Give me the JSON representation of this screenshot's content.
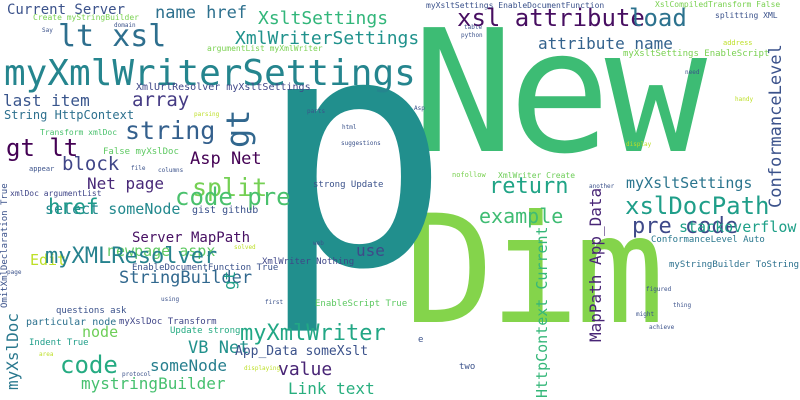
{
  "wordcloud": {
    "words": [
      {
        "text": "New",
        "color": "#3dbc74"
      },
      {
        "text": "Dim",
        "color": "#84d44b"
      },
      {
        "text": "p",
        "color": "#218f8d"
      },
      {
        "text": "myXmlWriterSettings",
        "color": "#25858e"
      },
      {
        "text": "xsl attribute",
        "color": "#470e61"
      },
      {
        "text": "lt xsl",
        "color": "#2e6f8e"
      },
      {
        "text": "XmlWriterSettings",
        "color": "#20928c"
      },
      {
        "text": "XsltSettings",
        "color": "#32b67a"
      },
      {
        "text": "Current Server",
        "color": "#3b528b"
      },
      {
        "text": "name href",
        "color": "#2d708e"
      },
      {
        "text": "load",
        "color": "#2c728e"
      },
      {
        "text": "attribute name",
        "color": "#33628d"
      },
      {
        "text": "gt",
        "color": "#31678e"
      },
      {
        "text": "string",
        "color": "#34608d"
      },
      {
        "text": "gt lt",
        "color": "#440154"
      },
      {
        "text": "block",
        "color": "#404688"
      },
      {
        "text": "array",
        "color": "#443a83"
      },
      {
        "text": "last item",
        "color": "#39558c"
      },
      {
        "text": "String HttpContext",
        "color": "#2d708e"
      },
      {
        "text": "split",
        "color": "#75d054"
      },
      {
        "text": "code pre",
        "color": "#4ac16d"
      },
      {
        "text": "return",
        "color": "#20a486"
      },
      {
        "text": "myXsltSettings",
        "color": "#2b758e"
      },
      {
        "text": "xslDocPath",
        "color": "#1f9e89"
      },
      {
        "text": "example",
        "color": "#3fbc73"
      },
      {
        "text": "pre code",
        "color": "#3e4989"
      },
      {
        "text": "stackoverflow",
        "color": "#1fa088"
      },
      {
        "text": "ConformanceLevel",
        "color": "#3b528b"
      },
      {
        "text": "MapPath App_Data",
        "color": "#482576"
      },
      {
        "text": "HttpContext Current",
        "color": "#35b779"
      },
      {
        "text": "Asp Net",
        "color": "#440154"
      },
      {
        "text": "Net page",
        "color": "#482878"
      },
      {
        "text": "select someNode",
        "color": "#23898e"
      },
      {
        "text": "href",
        "color": "#1f9a8a"
      },
      {
        "text": "Server MapPath",
        "color": "#471063"
      },
      {
        "text": "newpage aspx",
        "color": "#5ec962"
      },
      {
        "text": "Edit",
        "color": "#bddf26"
      },
      {
        "text": "myXMLResolver",
        "color": "#26828e"
      },
      {
        "text": "StringBuilder",
        "color": "#31688e"
      },
      {
        "text": "myXmlWriter",
        "color": "#22a785"
      },
      {
        "text": "code",
        "color": "#25ab82"
      },
      {
        "text": "node",
        "color": "#6ece58"
      },
      {
        "text": "VB Net",
        "color": "#21918c"
      },
      {
        "text": "someNode",
        "color": "#277f8e"
      },
      {
        "text": "mystringBuilder",
        "color": "#46c06f"
      },
      {
        "text": "myXslDoc",
        "color": "#2a788e"
      },
      {
        "text": "value",
        "color": "#482475"
      },
      {
        "text": "App_Data someXslt",
        "color": "#3b528b"
      },
      {
        "text": "Link text",
        "color": "#29af7f"
      },
      {
        "text": "use",
        "color": "#3e4a89"
      },
      {
        "text": "XmlUrlResolver myXsltSettings",
        "color": "#3f4788"
      },
      {
        "text": "EnableScript True",
        "color": "#5ec962"
      },
      {
        "text": "XmlWriter Nothing",
        "color": "#3f4788"
      },
      {
        "text": "gist github",
        "color": "#3b528b"
      },
      {
        "text": "EnableDocumentFunction True",
        "color": "#3b528b"
      },
      {
        "text": "ConformanceLevel Auto",
        "color": "#2a788e"
      },
      {
        "text": "myStringBuilder ToString",
        "color": "#2c718e"
      },
      {
        "text": "myXslDoc Transform",
        "color": "#404688"
      },
      {
        "text": "particular node",
        "color": "#2c718e"
      },
      {
        "text": "Indent True",
        "color": "#1f9e89"
      },
      {
        "text": "questions ask",
        "color": "#3b528b"
      },
      {
        "text": "Update strong",
        "color": "#25ab82"
      },
      {
        "text": "strong Update",
        "color": "#3b528b"
      },
      {
        "text": "XmlWriter Create",
        "color": "#6ece58"
      },
      {
        "text": "xmlDoc argumentList",
        "color": "#404688"
      },
      {
        "text": "False myXslDoc",
        "color": "#5ec962"
      },
      {
        "text": "Transform xmlDoc",
        "color": "#4ac16d"
      },
      {
        "text": "OmitXmlDeclaration True",
        "color": "#3b528b"
      },
      {
        "text": "myXsltSettings EnableDocumentFunction",
        "color": "#3b528b"
      },
      {
        "text": "XslCompiledTransform False",
        "color": "#7ad151"
      },
      {
        "text": "argumentList myXmlWriter",
        "color": "#7ad151"
      },
      {
        "text": "Create myStringBuilder",
        "color": "#7ad151"
      },
      {
        "text": "myXsltSettings EnableScript",
        "color": "#7ad151"
      },
      {
        "text": "splitting XML",
        "color": "#3b528b"
      },
      {
        "text": "gt",
        "color": "#1f9e89"
      },
      {
        "text": "address",
        "color": "#bddf26"
      },
      {
        "text": "nofollow",
        "color": "#7ad151"
      },
      {
        "text": "suggestions",
        "color": "#3b528b"
      },
      {
        "text": "columns",
        "color": "#3b528b"
      },
      {
        "text": "table",
        "color": "#3b528b"
      },
      {
        "text": "python",
        "color": "#3b528b"
      },
      {
        "text": "html",
        "color": "#3b528b"
      },
      {
        "text": "appear",
        "color": "#3b528b"
      },
      {
        "text": "using",
        "color": "#3b528b"
      },
      {
        "text": "first",
        "color": "#3b528b"
      },
      {
        "text": "web",
        "color": "#3b528b"
      },
      {
        "text": "solved",
        "color": "#bddf26"
      },
      {
        "text": "thing",
        "color": "#3b528b"
      },
      {
        "text": "achieve",
        "color": "#3b528b"
      },
      {
        "text": "figured",
        "color": "#3b528b"
      },
      {
        "text": "might",
        "color": "#3b528b"
      },
      {
        "text": "another",
        "color": "#3b528b"
      },
      {
        "text": "display",
        "color": "#bddf26"
      },
      {
        "text": "need",
        "color": "#3b528b"
      },
      {
        "text": "handy",
        "color": "#bddf26"
      },
      {
        "text": "two",
        "color": "#3b528b"
      },
      {
        "text": "area",
        "color": "#bddf26"
      },
      {
        "text": "protocol",
        "color": "#3b528b"
      },
      {
        "text": "displaying",
        "color": "#bddf26"
      },
      {
        "text": "parsing",
        "color": "#bddf26"
      },
      {
        "text": "file",
        "color": "#3b528b"
      },
      {
        "text": "page",
        "color": "#3b528b"
      },
      {
        "text": "Say",
        "color": "#3b528b"
      },
      {
        "text": "domain",
        "color": "#3b528b"
      },
      {
        "text": "Asp",
        "color": "#3b528b"
      },
      {
        "text": "parts",
        "color": "#3b528b"
      },
      {
        "text": "e",
        "color": "#3b528b"
      }
    ]
  }
}
